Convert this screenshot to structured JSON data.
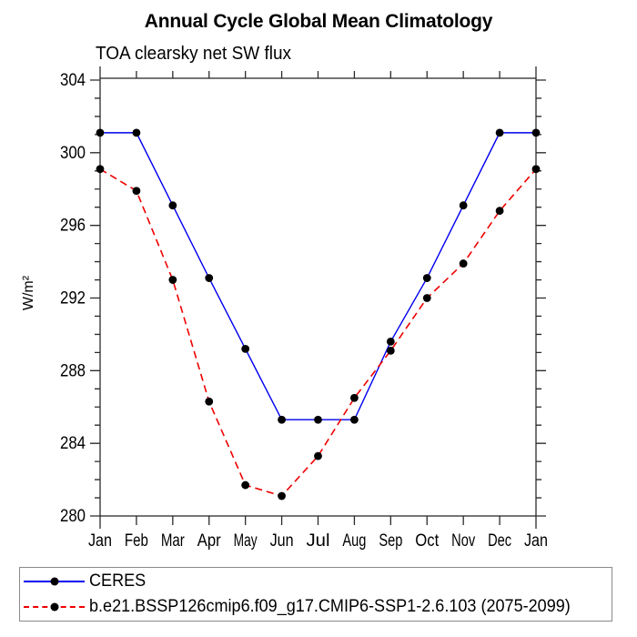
{
  "chart_data": {
    "type": "line",
    "title": "Annual Cycle Global Mean Climatology",
    "subtitle": "TOA clearsky net SW flux",
    "ylabel": "W/m²",
    "xlabel": "",
    "categories": [
      "Jan",
      "Feb",
      "Mar",
      "Apr",
      "May",
      "Jun",
      "Jul",
      "Aug",
      "Sep",
      "Oct",
      "Nov",
      "Dec",
      "Jan"
    ],
    "ylim": [
      280,
      304
    ],
    "ytick_major_interval": 4,
    "ytick_minor_interval": 1,
    "grid": false,
    "legend_position": "bottom-left",
    "axis_color": "#2b2b2b",
    "series": [
      {
        "name": "CERES",
        "color": "#0000ee",
        "line_style": "solid",
        "marker": "filled-circle",
        "marker_color": "#000000",
        "values": [
          301.1,
          301.1,
          297.1,
          293.1,
          289.2,
          285.3,
          285.3,
          285.3,
          289.6,
          293.1,
          297.1,
          301.1,
          301.1
        ]
      },
      {
        "name": "b.e21.BSSP126cmip6.f09_g17.CMIP6-SSP1-2.6.103 (2075-2099)",
        "color": "#ee0000",
        "line_style": "dashed",
        "marker": "filled-circle",
        "marker_color": "#000000",
        "values": [
          299.1,
          297.9,
          293.0,
          286.3,
          281.7,
          281.1,
          283.3,
          286.5,
          289.1,
          292.0,
          293.9,
          296.8,
          299.1
        ]
      }
    ]
  }
}
